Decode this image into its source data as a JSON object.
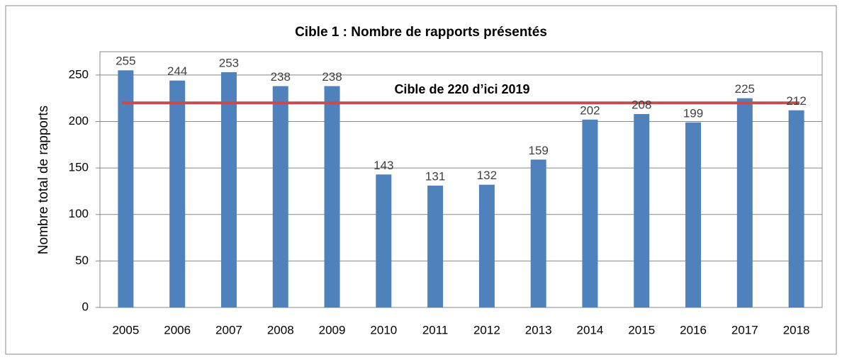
{
  "chart_data": {
    "type": "bar",
    "title": "Cible 1 : Nombre de rapports présentés",
    "y_label": "Nombre total de rapports",
    "categories": [
      "2005",
      "2006",
      "2007",
      "2008",
      "2009",
      "2010",
      "2011",
      "2012",
      "2013",
      "2014",
      "2015",
      "2016",
      "2017",
      "2018"
    ],
    "values": [
      255,
      244,
      253,
      238,
      238,
      143,
      131,
      132,
      159,
      202,
      208,
      199,
      225,
      212
    ],
    "color": "#4f81bd",
    "ylim": [
      0,
      275
    ],
    "yticks": [
      0,
      50,
      100,
      150,
      200,
      250
    ],
    "grid": true,
    "target": {
      "value": 220,
      "label": "Cible de 220 d’ici 2019",
      "color": "#c0504d"
    }
  }
}
